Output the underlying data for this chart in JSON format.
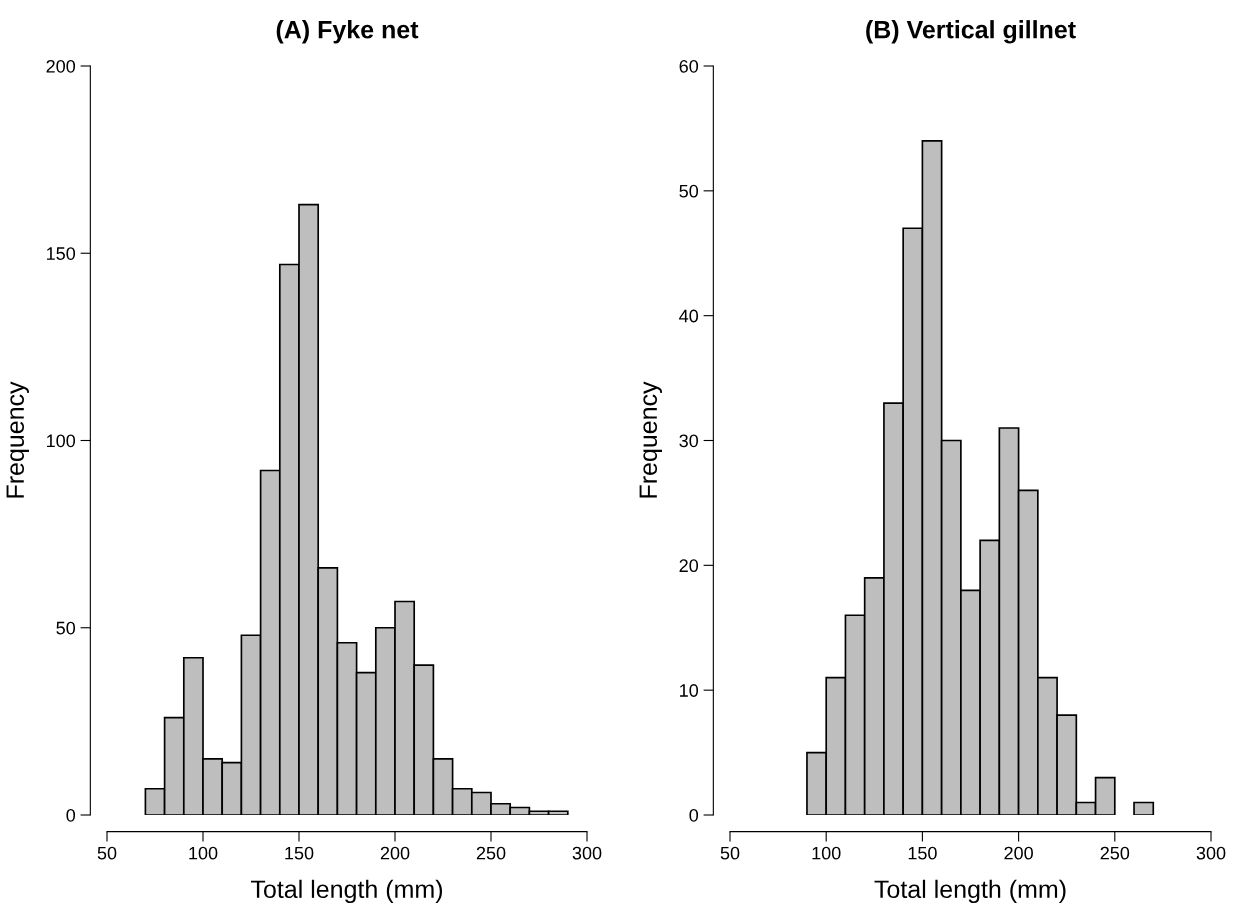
{
  "chart_data": [
    {
      "type": "histogram",
      "title": "(A) Fyke net",
      "xlabel": "Total length (mm)",
      "ylabel": "Frequency",
      "color": "#bebebe",
      "bins": [
        70,
        80,
        90,
        100,
        110,
        120,
        130,
        140,
        150,
        160,
        170,
        180,
        190,
        200,
        210,
        220,
        230,
        240,
        250,
        260,
        270,
        280,
        290
      ],
      "values": [
        7,
        26,
        42,
        15,
        14,
        48,
        92,
        147,
        163,
        66,
        46,
        38,
        50,
        57,
        40,
        15,
        7,
        6,
        3,
        2,
        1,
        1
      ],
      "xlim": [
        50,
        300
      ],
      "xticks": [
        50,
        100,
        150,
        200,
        250,
        300
      ],
      "ylim": [
        0,
        200
      ],
      "yticks": [
        0,
        50,
        100,
        150,
        200
      ],
      "grid": false
    },
    {
      "type": "histogram",
      "title": "(B) Vertical gillnet",
      "xlabel": "Total length (mm)",
      "ylabel": "Frequency",
      "color": "#bebebe",
      "bins": [
        90,
        100,
        110,
        120,
        130,
        140,
        150,
        160,
        170,
        180,
        190,
        200,
        210,
        220,
        230,
        240,
        250,
        260,
        270
      ],
      "values": [
        5,
        11,
        16,
        19,
        33,
        47,
        54,
        30,
        18,
        22,
        31,
        26,
        11,
        8,
        1,
        3,
        0,
        1
      ],
      "xlim": [
        50,
        300
      ],
      "xticks": [
        50,
        100,
        150,
        200,
        250,
        300
      ],
      "ylim": [
        0,
        60
      ],
      "yticks": [
        0,
        10,
        20,
        30,
        40,
        50,
        60
      ],
      "grid": false
    }
  ]
}
